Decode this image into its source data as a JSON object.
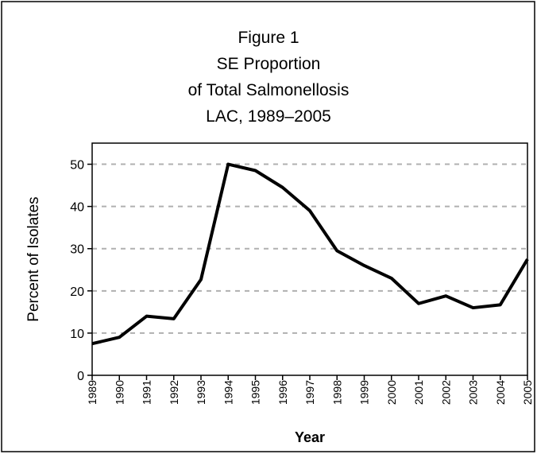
{
  "chart_data": {
    "type": "line",
    "title": [
      "Figure 1",
      "SE Proportion",
      "of Total Salmonellosis",
      "LAC, 1989–2005"
    ],
    "xlabel": "Year",
    "ylabel": "Percent of Isolates",
    "categories": [
      "1989",
      "1990",
      "1991",
      "1992",
      "1993",
      "1994",
      "1995",
      "1996",
      "1997",
      "1998",
      "1999",
      "2000",
      "2001",
      "2002",
      "2003",
      "2004",
      "2005"
    ],
    "series": [
      {
        "name": "SE Proportion",
        "color": "#000000",
        "values": [
          7.5,
          9,
          14,
          13.4,
          22.7,
          50,
          48.5,
          44.5,
          39,
          29.5,
          26,
          23,
          17,
          18.8,
          16,
          16.7,
          27.5
        ]
      }
    ],
    "ylim": [
      0,
      55
    ],
    "yticks": [
      0,
      10,
      20,
      30,
      40,
      50
    ],
    "grid": true
  }
}
